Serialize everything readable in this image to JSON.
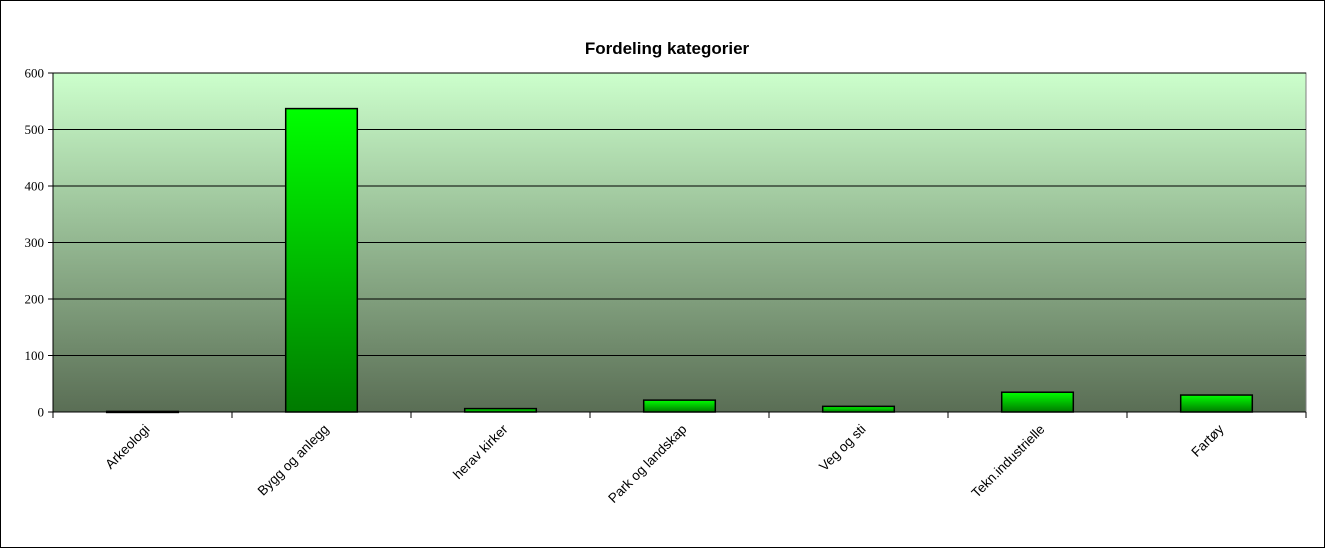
{
  "chart_data": {
    "type": "bar",
    "title": "Fordeling kategorier",
    "categories": [
      "Arkeologi",
      "Bygg og anlegg",
      "herav kirker",
      "Park og landskap",
      "Veg og sti",
      "Tekn.industrielle",
      "Fartøy"
    ],
    "values": [
      1,
      537,
      6,
      21,
      10,
      35,
      30
    ],
    "ylim": [
      0,
      600
    ],
    "yticks": [
      0,
      100,
      200,
      300,
      400,
      500,
      600
    ],
    "ytick_labels": [
      "0",
      "100",
      "200",
      "300",
      "400",
      "500",
      "600"
    ],
    "grid": true,
    "legend": "none",
    "colors": {
      "plot_bg_top": "#ccffcc",
      "plot_bg_bottom": "#5a6e55",
      "bar_light": "#00ff00",
      "bar_dark": "#007a00",
      "bar_border": "#000000",
      "gridline": "#000000"
    }
  }
}
